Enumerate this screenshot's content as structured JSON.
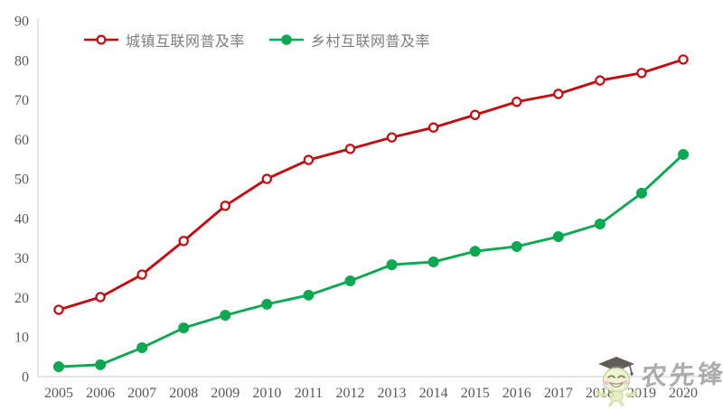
{
  "chart_data": {
    "type": "line",
    "title": "",
    "xlabel": "",
    "ylabel": "",
    "categories": [
      "2005",
      "2006",
      "2007",
      "2008",
      "2009",
      "2010",
      "2011",
      "2012",
      "2013",
      "2014",
      "2015",
      "2016",
      "2017",
      "2018",
      "2019",
      "2020"
    ],
    "series": [
      {
        "name": "城镇互联网普及率",
        "color": "#C60B10",
        "marker": "open-circle",
        "values": [
          16.9,
          20.1,
          25.8,
          34.3,
          43.2,
          50.0,
          54.8,
          57.6,
          60.5,
          63.0,
          66.2,
          69.5,
          71.5,
          74.9,
          76.8,
          80.2
        ]
      },
      {
        "name": "乡村互联网普及率",
        "color": "#0CA852",
        "marker": "filled-circle",
        "values": [
          2.5,
          3.0,
          7.3,
          12.3,
          15.5,
          18.3,
          20.6,
          24.2,
          28.3,
          29.0,
          31.7,
          32.9,
          35.4,
          38.6,
          46.4,
          56.2
        ]
      }
    ],
    "ylim": [
      0,
      90
    ],
    "yticks": [
      0,
      10,
      20,
      30,
      40,
      50,
      60,
      70,
      80,
      90
    ],
    "grid": false,
    "legend_position": "top-left",
    "axis_color": "#D6D6D6",
    "tick_label_color": "#595959"
  },
  "watermark": {
    "text": "农先锋"
  }
}
